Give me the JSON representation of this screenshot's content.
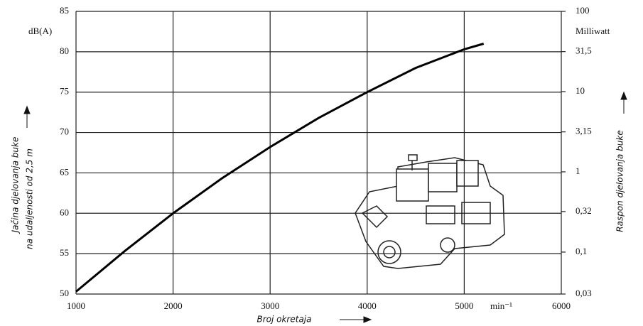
{
  "chart_data": {
    "type": "line",
    "y_unit": "dB(A)",
    "y2_unit": "Milliwatt",
    "x_unit": "min⁻¹",
    "ylabel": [
      "Jačina djelovanja buke",
      "na udaljenosti od 2,5 m"
    ],
    "y2label": "Raspon djelovanja buke",
    "xlabel": "Broj okretaja",
    "x": [
      1000,
      1500,
      2000,
      2500,
      3000,
      3500,
      4000,
      4500,
      5000,
      5200
    ],
    "series": [
      {
        "color": "#000000",
        "values": [
          50.3,
          55.3,
          60,
          64.3,
          68.2,
          71.8,
          75,
          78,
          80.3,
          81
        ]
      }
    ],
    "xlim": [
      1000,
      6000
    ],
    "xticks": [
      1000,
      2000,
      3000,
      4000,
      5000,
      6000
    ],
    "ylim": [
      50,
      85
    ],
    "yticks": [
      50,
      55,
      60,
      65,
      70,
      75,
      80,
      85
    ],
    "y2lim": [
      {
        "value": 0.03,
        "label": "0,03"
      },
      100
    ],
    "y2scale": "log",
    "y2ticks": [
      {
        "value": 0.03,
        "label": "0,03"
      },
      {
        "value": 0.1,
        "label": "0,1"
      },
      {
        "value": 0.32,
        "label": "0,32"
      },
      1,
      {
        "value": 3.15,
        "label": "3,15"
      },
      10,
      {
        "value": 31.5,
        "label": "31,5"
      },
      100
    ],
    "grid": true
  }
}
